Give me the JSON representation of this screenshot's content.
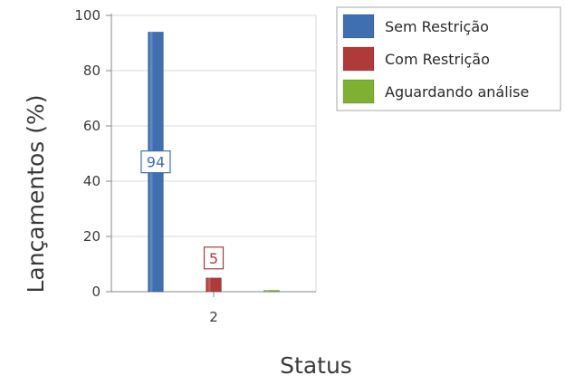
{
  "chart_data": {
    "type": "bar",
    "categories": [
      "2"
    ],
    "series": [
      {
        "name": "Sem Restrição",
        "values": [
          94
        ],
        "color": "#3f6fb0"
      },
      {
        "name": "Com Restrição",
        "values": [
          5
        ],
        "color": "#b03a3a"
      },
      {
        "name": "Aguardando análise",
        "values": [
          0
        ],
        "color": "#7fb032"
      }
    ],
    "data_labels": [
      "94",
      "5",
      ""
    ],
    "title": "",
    "xlabel": "Status",
    "ylabel": "Lançamentos (%)",
    "ylim": [
      0,
      100
    ],
    "yticks": [
      0,
      20,
      40,
      60,
      80,
      100
    ],
    "grid": true,
    "legend": "top-right"
  }
}
